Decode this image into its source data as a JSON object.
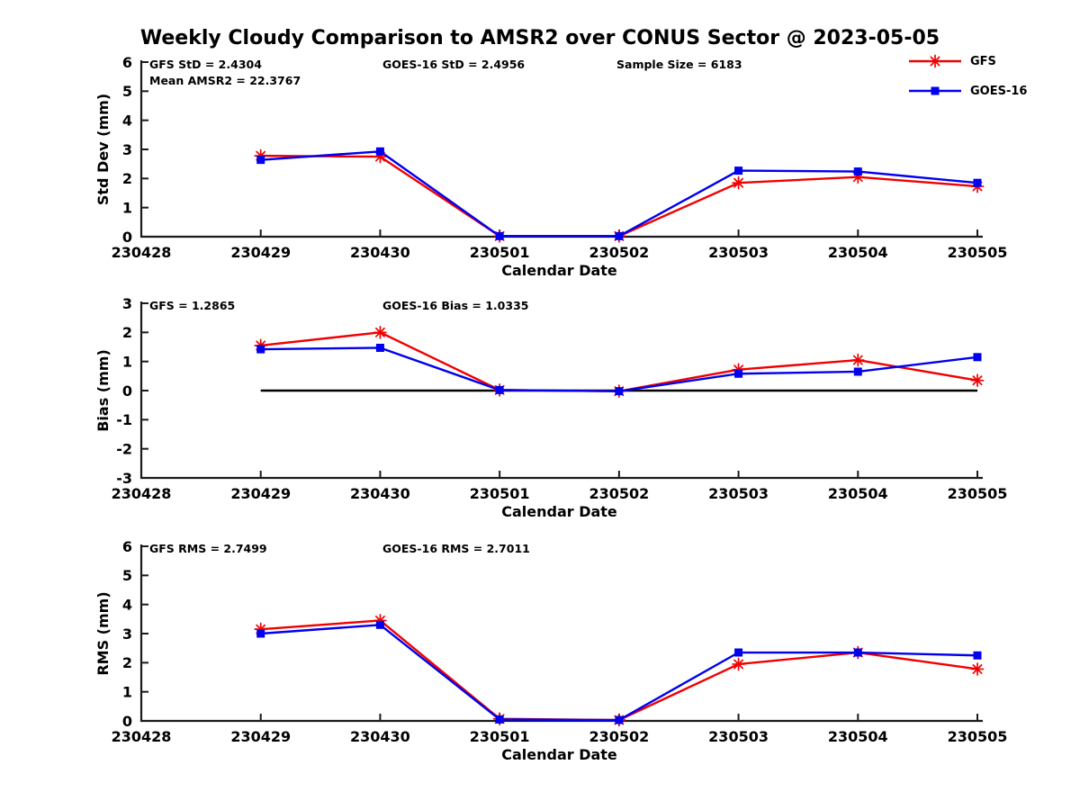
{
  "page": {
    "title": "Weekly Cloudy Comparison to AMSR2 over CONUS Sector @ 2023-05-05"
  },
  "colors": {
    "gfs": "#f00000",
    "goes16": "#0000ee",
    "axis": "#1a1a1a",
    "zero_line": "#000000"
  },
  "legend": {
    "items": [
      {
        "label": "GFS",
        "color": "#f00000",
        "marker": "asterisk"
      },
      {
        "label": "GOES-16",
        "color": "#0000ee",
        "marker": "square"
      }
    ]
  },
  "chart_data": [
    {
      "type": "line",
      "name": "std-dev",
      "ylabel": "Std Dev (mm)",
      "xlabel": "Calendar Date",
      "ylim": [
        0,
        6
      ],
      "yticks": [
        0,
        1,
        2,
        3,
        4,
        5,
        6
      ],
      "categories": [
        "230428",
        "230429",
        "230430",
        "230501",
        "230502",
        "230503",
        "230504",
        "230505"
      ],
      "grid": false,
      "zero_line": false,
      "annotations": [
        {
          "text": "GFS StD = 2.4304",
          "slot": 0,
          "row": 0
        },
        {
          "text": "Mean AMSR2 = 22.3767",
          "slot": 0,
          "row": 1
        },
        {
          "text": "GOES-16 StD = 2.4956",
          "slot": 1,
          "row": 0
        },
        {
          "text": "Sample Size = 6183",
          "slot": 2,
          "row": 0
        }
      ],
      "series": [
        {
          "name": "GFS",
          "color": "#f00000",
          "marker": "asterisk",
          "x": [
            "230429",
            "230430",
            "230501",
            "230502",
            "230503",
            "230504",
            "230505"
          ],
          "values": [
            2.78,
            2.75,
            0.02,
            0.02,
            1.85,
            2.05,
            1.73
          ]
        },
        {
          "name": "GOES-16",
          "color": "#0000ee",
          "marker": "square",
          "x": [
            "230429",
            "230430",
            "230501",
            "230502",
            "230503",
            "230504",
            "230505"
          ],
          "values": [
            2.64,
            2.93,
            0.02,
            0.02,
            2.27,
            2.24,
            1.85
          ]
        }
      ]
    },
    {
      "type": "line",
      "name": "bias",
      "ylabel": "Bias (mm)",
      "xlabel": "Calendar Date",
      "ylim": [
        -3,
        3
      ],
      "yticks": [
        -3,
        -2,
        -1,
        0,
        1,
        2,
        3
      ],
      "categories": [
        "230428",
        "230429",
        "230430",
        "230501",
        "230502",
        "230503",
        "230504",
        "230505"
      ],
      "grid": false,
      "zero_line": true,
      "annotations": [
        {
          "text": "GFS = 1.2865",
          "slot": 0,
          "row": 0
        },
        {
          "text": "GOES-16 Bias  = 1.0335",
          "slot": 1,
          "row": 0
        }
      ],
      "series": [
        {
          "name": "GFS",
          "color": "#f00000",
          "marker": "asterisk",
          "x": [
            "230429",
            "230430",
            "230501",
            "230502",
            "230503",
            "230504",
            "230505"
          ],
          "values": [
            1.55,
            2.0,
            0.02,
            -0.02,
            0.72,
            1.05,
            0.35
          ]
        },
        {
          "name": "GOES-16",
          "color": "#0000ee",
          "marker": "square",
          "x": [
            "230429",
            "230430",
            "230501",
            "230502",
            "230503",
            "230504",
            "230505"
          ],
          "values": [
            1.42,
            1.47,
            0.02,
            -0.02,
            0.58,
            0.65,
            1.15
          ]
        }
      ]
    },
    {
      "type": "line",
      "name": "rms",
      "ylabel": "RMS (mm)",
      "xlabel": "Calendar Date",
      "ylim": [
        0,
        6
      ],
      "yticks": [
        0,
        1,
        2,
        3,
        4,
        5,
        6
      ],
      "categories": [
        "230428",
        "230429",
        "230430",
        "230501",
        "230502",
        "230503",
        "230504",
        "230505"
      ],
      "grid": false,
      "zero_line": false,
      "annotations": [
        {
          "text": "GFS RMS = 2.7499",
          "slot": 0,
          "row": 0
        },
        {
          "text": "GOES-16 RMS = 2.7011",
          "slot": 1,
          "row": 0
        }
      ],
      "series": [
        {
          "name": "GFS",
          "color": "#f00000",
          "marker": "asterisk",
          "x": [
            "230429",
            "230430",
            "230501",
            "230502",
            "230503",
            "230504",
            "230505"
          ],
          "values": [
            3.15,
            3.45,
            0.07,
            0.03,
            1.95,
            2.35,
            1.78
          ]
        },
        {
          "name": "GOES-16",
          "color": "#0000ee",
          "marker": "square",
          "x": [
            "230429",
            "230430",
            "230501",
            "230502",
            "230503",
            "230504",
            "230505"
          ],
          "values": [
            3.0,
            3.3,
            0.05,
            0.03,
            2.35,
            2.35,
            2.25
          ]
        }
      ]
    }
  ]
}
